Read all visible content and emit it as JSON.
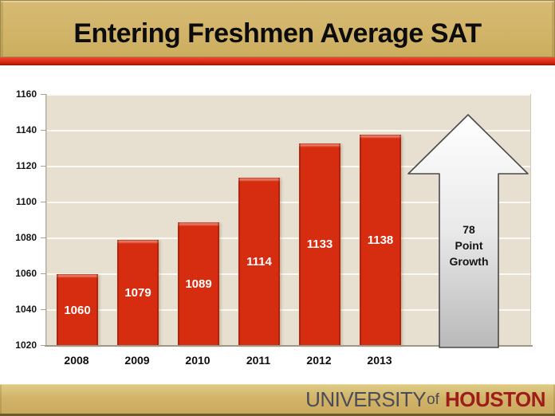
{
  "title": "Entering Freshmen Average SAT",
  "chart_data": {
    "type": "bar",
    "title": "Entering Freshmen Average SAT",
    "categories": [
      "2008",
      "2009",
      "2010",
      "2011",
      "2012",
      "2013"
    ],
    "values": [
      1060,
      1079,
      1089,
      1114,
      1133,
      1138
    ],
    "bar_labels": [
      "1060",
      "1079",
      "1089",
      "1114",
      "1133",
      "1138"
    ],
    "xlabel": "",
    "ylabel": "",
    "ylim": [
      1020,
      1160
    ],
    "yticks": [
      1020,
      1040,
      1060,
      1080,
      1100,
      1120,
      1140,
      1160
    ],
    "grid": true,
    "legend_position": "none",
    "bar_color": "#d62c10",
    "plot_background": "#e7e0d1",
    "annotation": {
      "shape": "up-arrow",
      "text": "78 Point Growth",
      "lines": [
        "78",
        "Point",
        "Growth"
      ]
    }
  },
  "footer": {
    "university": "UNIVERSITY",
    "of": "of",
    "houston": "HOUSTON"
  },
  "colors": {
    "gold_bar": "#d2b469",
    "stripe_red": "#d92b15",
    "bar_red": "#d62c10",
    "brand_gray": "#4c4c59",
    "brand_red": "#9e1c1c",
    "plot_beige": "#e7e0d1"
  }
}
